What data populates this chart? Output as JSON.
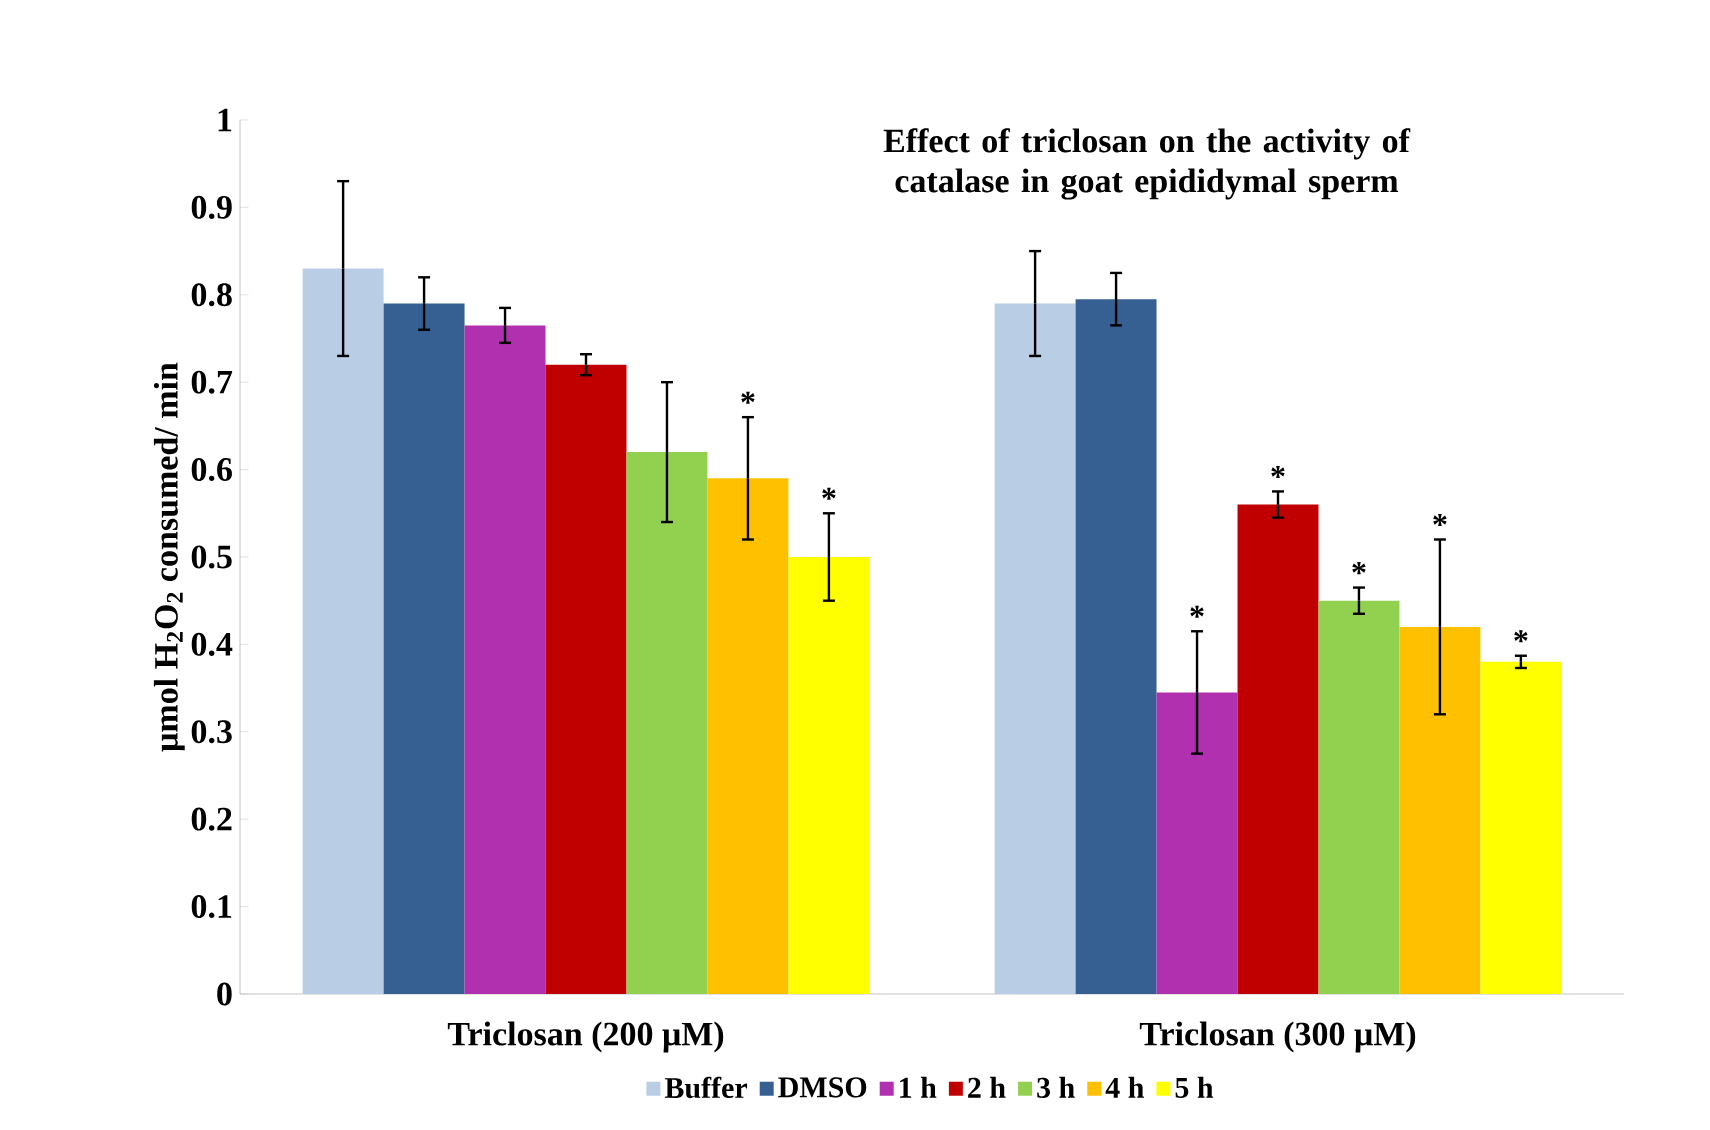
{
  "chart_data": {
    "type": "bar",
    "title": "Effect of triclosan on the activity of catalase in goat epididymal sperm",
    "ylabel": "μmol H$_{2}$O$_{2}$ consumed/ min",
    "categories": [
      "Triclosan (200 μM)",
      "Triclosan (300 μM)"
    ],
    "series": [
      {
        "name": "Buffer",
        "color": "#b9cde5",
        "values": [
          0.83,
          0.79
        ],
        "errors": [
          0.1,
          0.06
        ],
        "value_labels": [
          null,
          null
        ]
      },
      {
        "name": "DMSO",
        "color": "#376092",
        "values": [
          0.79,
          0.795
        ],
        "errors": [
          0.03,
          0.03
        ],
        "value_labels": [
          null,
          null
        ]
      },
      {
        "name": "1 h",
        "color": "#b030b0",
        "values": [
          0.765,
          0.345
        ],
        "errors": [
          0.02,
          0.07
        ],
        "value_labels": [
          null,
          "*"
        ]
      },
      {
        "name": "2 h",
        "color": "#c00000",
        "values": [
          0.72,
          0.56
        ],
        "errors": [
          0.012,
          0.015
        ],
        "value_labels": [
          null,
          "*"
        ]
      },
      {
        "name": "3 h",
        "color": "#92d050",
        "values": [
          0.62,
          0.45
        ],
        "errors": [
          0.08,
          0.015
        ],
        "value_labels": [
          null,
          "*"
        ]
      },
      {
        "name": "4 h",
        "color": "#ffc000",
        "values": [
          0.59,
          0.42
        ],
        "errors": [
          0.07,
          0.1
        ],
        "value_labels": [
          "*",
          "*"
        ]
      },
      {
        "name": "5 h",
        "color": "#ffff00",
        "values": [
          0.5,
          0.38
        ],
        "errors": [
          0.05,
          0.007
        ],
        "value_labels": [
          "*",
          "*"
        ]
      }
    ],
    "ylim": [
      0,
      1
    ],
    "yticks": [
      0,
      0.1,
      0.2,
      0.3,
      0.4,
      0.5,
      0.6,
      0.7,
      0.8,
      0.9,
      1
    ],
    "grid": false,
    "legend": "bottom"
  }
}
